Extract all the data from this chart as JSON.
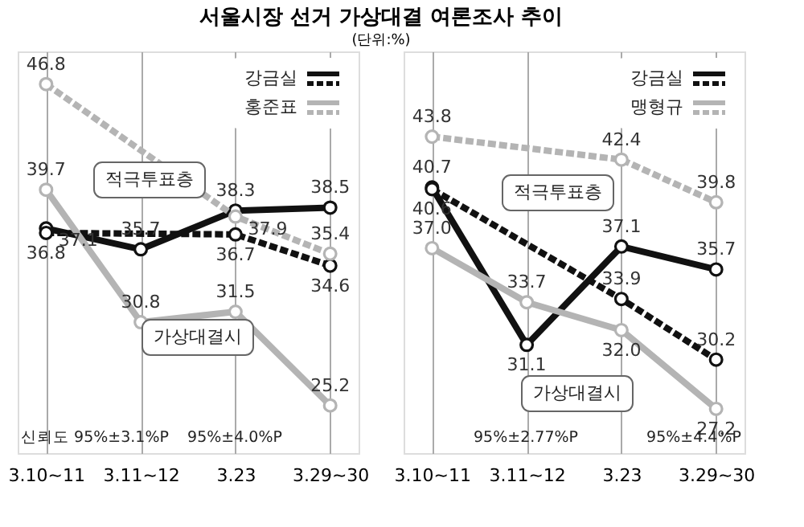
{
  "chart_data": [
    {
      "type": "line",
      "title": "서울시장 선거 가상대결 여론조사 추이",
      "subtitle": "(단위:%)",
      "categories": [
        "3.10~11",
        "3.11~12",
        "3.23",
        "3.29~30"
      ],
      "ylim": [
        22,
        49
      ],
      "tick_labels": "x",
      "grid": "x",
      "legend": "top right",
      "marker": "circle",
      "data_labels": true,
      "series": [
        {
          "name": "강금실",
          "color": "#111111",
          "line_style": "solid",
          "values": [
            37.1,
            35.7,
            38.3,
            38.5
          ]
        },
        {
          "color": "#111111",
          "line_style": "dashed",
          "values": [
            36.8,
            null,
            36.7,
            34.6
          ]
        },
        {
          "color": "#b4b4b4",
          "line_style": "dashed",
          "values": [
            46.8,
            null,
            37.9,
            35.4
          ]
        },
        {
          "name": "홍준표",
          "color": "#b4b4b4",
          "line_style": "solid",
          "values": [
            39.7,
            30.8,
            31.5,
            25.2
          ]
        }
      ],
      "annotations": [
        "적극투표층",
        "가상대결시",
        "신뢰도 95%±3.1%P",
        "95%±4.0%P"
      ]
    },
    {
      "type": "line",
      "categories": [
        "3.10~11",
        "3.11~12",
        "3.23",
        "3.29~30"
      ],
      "ylim": [
        24.5,
        49
      ],
      "tick_labels": "x",
      "grid": "x",
      "legend": "top right",
      "marker": "circle",
      "data_labels": true,
      "series": [
        {
          "name": "강금실",
          "color": "#111111",
          "line_style": "solid",
          "values": [
            40.7,
            31.1,
            37.1,
            35.7
          ]
        },
        {
          "color": "#111111",
          "line_style": "dashed",
          "values": [
            40.6,
            null,
            33.9,
            30.2
          ]
        },
        {
          "color": "#b4b4b4",
          "line_style": "dashed",
          "values": [
            43.8,
            null,
            42.4,
            39.8
          ]
        },
        {
          "name": "맹형규",
          "color": "#b4b4b4",
          "line_style": "solid",
          "values": [
            37.0,
            33.7,
            32.0,
            27.2
          ],
          "value_labels": [
            "37.0",
            "33.7",
            "32.0",
            "27.2"
          ]
        }
      ],
      "annotations": [
        "적극투표층",
        "가상대결시",
        "95%±2.77%P",
        "95%±4.4%P"
      ]
    }
  ]
}
